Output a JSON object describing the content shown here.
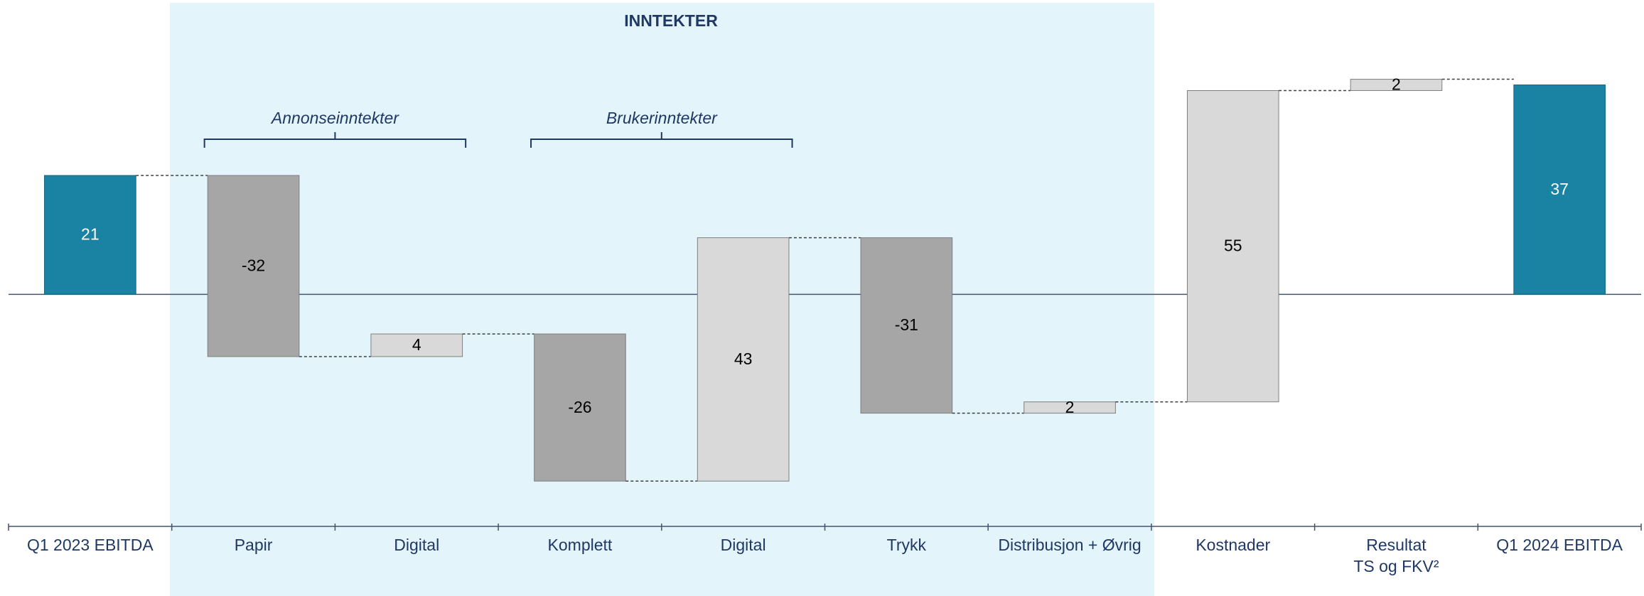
{
  "chart_data": {
    "type": "waterfall",
    "title": "INNTEKTER",
    "annotations": [
      "Annonseinntekter",
      "Brukerinntekter"
    ],
    "categories": [
      "Q1 2023 EBITDA",
      "Papir",
      "Digital",
      "Komplett",
      "Digital",
      "Trykk",
      "Distribusjon + Øvrig",
      "Kostnader",
      "Resultat\nTS og FKV²",
      "Q1 2024 EBITDA"
    ],
    "values": [
      21,
      -32,
      4,
      -26,
      43,
      -31,
      2,
      55,
      2,
      37
    ],
    "measure": [
      "total",
      "relative",
      "relative",
      "relative",
      "relative",
      "relative",
      "relative",
      "relative",
      "relative",
      "total"
    ],
    "colors": {
      "total": "#1a82a3",
      "decrease": "#a6a6a6",
      "increase": "#d9d9d9"
    },
    "ylim": [
      -41,
      52
    ]
  }
}
